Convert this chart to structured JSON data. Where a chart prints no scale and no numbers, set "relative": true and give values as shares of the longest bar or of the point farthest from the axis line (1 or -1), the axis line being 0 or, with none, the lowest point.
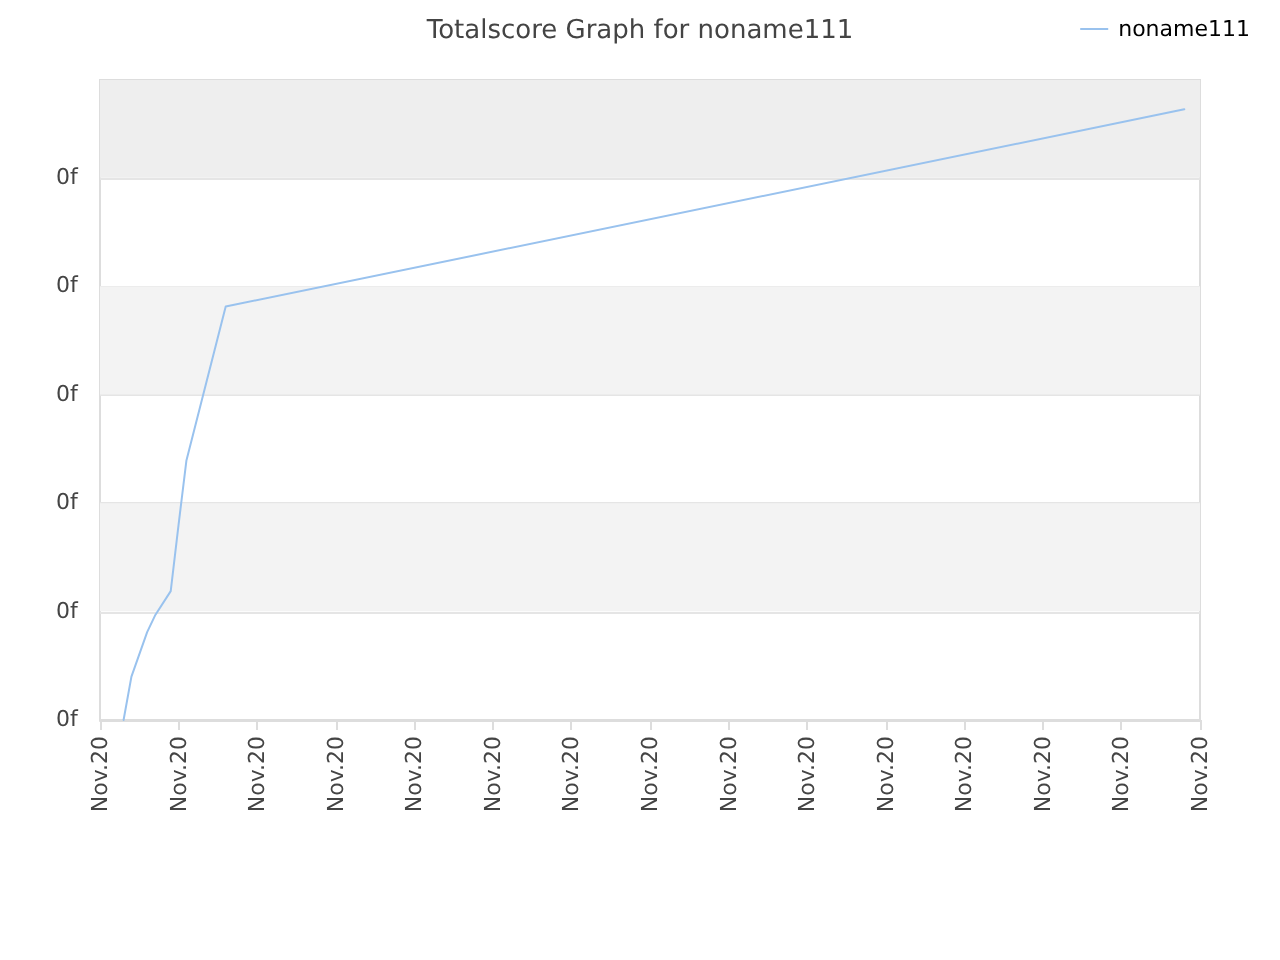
{
  "chart_data": {
    "type": "line",
    "title": "Totalscore Graph for noname111",
    "relative": true,
    "annotations": [
      "0f",
      "0f",
      "0f",
      "0f",
      "0f",
      "0f"
    ],
    "categories": [
      "Nov.20",
      null,
      null,
      null,
      null,
      null,
      null,
      null,
      null,
      null,
      "Nov.20",
      null,
      null,
      null,
      null,
      null,
      null,
      null,
      null,
      null,
      "Nov.20",
      null,
      null,
      null,
      null,
      null,
      null,
      null,
      null,
      null,
      "Nov.20",
      null,
      null,
      null,
      null,
      null,
      null,
      null,
      null,
      null,
      "Nov.20",
      null,
      null,
      null,
      null,
      null,
      null,
      null,
      null,
      null,
      "Nov.20",
      null,
      null,
      null,
      null,
      null,
      null,
      null,
      null,
      null,
      "Nov.20",
      null,
      null,
      null,
      null,
      null,
      null,
      null,
      null,
      null,
      "Nov.20",
      null,
      null,
      null,
      null,
      null,
      null,
      null,
      null,
      null,
      "Nov.20",
      null,
      null,
      null,
      null,
      null,
      null,
      null,
      null,
      null,
      "Nov.20",
      null,
      null,
      null,
      null,
      null,
      null,
      null,
      null,
      null,
      "Nov.20",
      null,
      null,
      null,
      null,
      null,
      null,
      null,
      null,
      null,
      "Nov.20",
      null,
      null,
      null,
      null,
      null,
      null,
      null,
      null,
      null,
      "Nov.20",
      null,
      null,
      null,
      null,
      null,
      null,
      null,
      null,
      null,
      "Nov.20",
      null,
      null,
      null,
      null,
      null,
      null,
      null,
      null,
      null,
      "Nov.20"
    ],
    "grid": "y",
    "bands": [
      {
        "axis": "y",
        "from": 0.178,
        "to": 0.355,
        "color": "#f3f3f3"
      },
      {
        "axis": "y",
        "from": 0.533,
        "to": 0.71,
        "color": "#f3f3f3"
      },
      {
        "axis": "y",
        "from": 0.888,
        "to": 1.048,
        "color": "#eeeeee"
      }
    ],
    "legend": "top right",
    "marker": "none",
    "line_style": "solid",
    "series": [
      {
        "name": "noname111",
        "color": "#99c2ee",
        "values": [
          null,
          null,
          null,
          0,
          0.071,
          null,
          0.144,
          0.171,
          null,
          0.211,
          0.32,
          0.425,
          null,
          null,
          null,
          null,
          0.677,
          null,
          null,
          null,
          null,
          null,
          null,
          null,
          null,
          null,
          null,
          null,
          null,
          null,
          null,
          null,
          null,
          null,
          null,
          null,
          null,
          null,
          null,
          null,
          null,
          null,
          null,
          null,
          null,
          null,
          null,
          null,
          null,
          null,
          null,
          null,
          null,
          null,
          null,
          null,
          null,
          null,
          null,
          null,
          null,
          null,
          null,
          null,
          null,
          null,
          null,
          null,
          null,
          null,
          null,
          null,
          null,
          null,
          null,
          null,
          null,
          null,
          null,
          null,
          null,
          null,
          null,
          null,
          null,
          null,
          null,
          null,
          null,
          null,
          null,
          null,
          null,
          null,
          null,
          null,
          null,
          null,
          null,
          null,
          null,
          null,
          null,
          null,
          null,
          null,
          null,
          null,
          null,
          null,
          null,
          null,
          null,
          null,
          null,
          null,
          null,
          null,
          null,
          null,
          null,
          null,
          null,
          null,
          null,
          null,
          null,
          null,
          null,
          null,
          null,
          null,
          null,
          null,
          null,
          null,
          null,
          null,
          1,
          null,
          null
        ]
      }
    ]
  }
}
